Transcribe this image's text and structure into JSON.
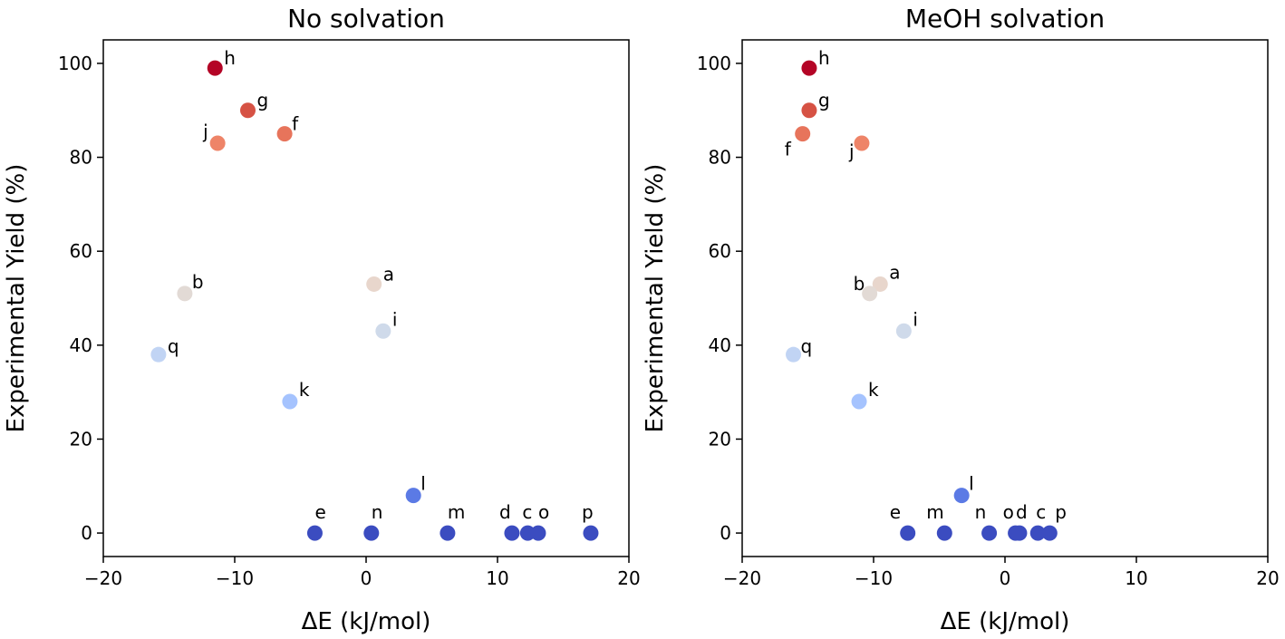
{
  "chart_data": [
    {
      "type": "scatter",
      "title": "No solvation",
      "xlabel": "ΔE (kJ/mol)",
      "ylabel": "Experimental Yield (%)",
      "xlim": [
        -20,
        20
      ],
      "ylim": [
        -5,
        105
      ],
      "xticks": [
        -20,
        -10,
        0,
        10,
        20
      ],
      "yticks": [
        0,
        20,
        40,
        60,
        80,
        100
      ],
      "xtick_labels": [
        "−20",
        "−10",
        "0",
        "10",
        "20"
      ],
      "ytick_labels": [
        "0",
        "20",
        "40",
        "60",
        "80",
        "100"
      ],
      "grid": false,
      "colormap": "coolwarm",
      "points": [
        {
          "label": "h",
          "x": -11.5,
          "y": 99,
          "color": "#b40426"
        },
        {
          "label": "g",
          "x": -9.0,
          "y": 90,
          "color": "#d65244"
        },
        {
          "label": "f",
          "x": -6.2,
          "y": 85,
          "color": "#e7745b"
        },
        {
          "label": "j",
          "x": -11.3,
          "y": 83,
          "color": "#ee8468"
        },
        {
          "label": "a",
          "x": 0.6,
          "y": 53,
          "color": "#e8d6cc"
        },
        {
          "label": "b",
          "x": -13.8,
          "y": 51,
          "color": "#e2dad5"
        },
        {
          "label": "i",
          "x": 1.3,
          "y": 43,
          "color": "#cfdaea"
        },
        {
          "label": "q",
          "x": -15.8,
          "y": 38,
          "color": "#c1d4f4"
        },
        {
          "label": "k",
          "x": -5.8,
          "y": 28,
          "color": "#a5c3fe"
        },
        {
          "label": "l",
          "x": 3.6,
          "y": 8,
          "color": "#5b7ae5"
        },
        {
          "label": "e",
          "x": -3.9,
          "y": 0,
          "color": "#3b4cc0"
        },
        {
          "label": "n",
          "x": 0.4,
          "y": 0,
          "color": "#3b4cc0"
        },
        {
          "label": "m",
          "x": 6.2,
          "y": 0,
          "color": "#3b4cc0"
        },
        {
          "label": "d",
          "x": 11.1,
          "y": 0,
          "color": "#3b4cc0"
        },
        {
          "label": "c",
          "x": 12.3,
          "y": 0,
          "color": "#3b4cc0"
        },
        {
          "label": "o",
          "x": 13.1,
          "y": 0,
          "color": "#3b4cc0"
        },
        {
          "label": "p",
          "x": 17.1,
          "y": 0,
          "color": "#3b4cc0"
        }
      ]
    },
    {
      "type": "scatter",
      "title": "MeOH solvation",
      "xlabel": "ΔE (kJ/mol)",
      "ylabel": "Experimental Yield (%)",
      "xlim": [
        -20,
        20
      ],
      "ylim": [
        -5,
        105
      ],
      "xticks": [
        -20,
        -10,
        0,
        10,
        20
      ],
      "yticks": [
        0,
        20,
        40,
        60,
        80,
        100
      ],
      "xtick_labels": [
        "−20",
        "−10",
        "0",
        "10",
        "20"
      ],
      "ytick_labels": [
        "0",
        "20",
        "40",
        "60",
        "80",
        "100"
      ],
      "grid": false,
      "colormap": "coolwarm",
      "points": [
        {
          "label": "h",
          "x": -14.9,
          "y": 99,
          "color": "#b40426"
        },
        {
          "label": "g",
          "x": -14.9,
          "y": 90,
          "color": "#d65244"
        },
        {
          "label": "f",
          "x": -15.4,
          "y": 85,
          "color": "#e7745b"
        },
        {
          "label": "j",
          "x": -10.9,
          "y": 83,
          "color": "#ee8468"
        },
        {
          "label": "a",
          "x": -9.5,
          "y": 53,
          "color": "#e8d6cc"
        },
        {
          "label": "b",
          "x": -10.3,
          "y": 51,
          "color": "#e2dad5"
        },
        {
          "label": "i",
          "x": -7.7,
          "y": 43,
          "color": "#cfdaea"
        },
        {
          "label": "q",
          "x": -16.1,
          "y": 38,
          "color": "#c1d4f4"
        },
        {
          "label": "k",
          "x": -11.1,
          "y": 28,
          "color": "#a5c3fe"
        },
        {
          "label": "l",
          "x": -3.3,
          "y": 8,
          "color": "#5b7ae5"
        },
        {
          "label": "e",
          "x": -7.4,
          "y": 0,
          "color": "#3b4cc0"
        },
        {
          "label": "m",
          "x": -4.6,
          "y": 0,
          "color": "#3b4cc0"
        },
        {
          "label": "n",
          "x": -1.2,
          "y": 0,
          "color": "#3b4cc0"
        },
        {
          "label": "o",
          "x": 0.8,
          "y": 0,
          "color": "#3b4cc0"
        },
        {
          "label": "d",
          "x": 1.1,
          "y": 0,
          "color": "#3b4cc0"
        },
        {
          "label": "c",
          "x": 2.5,
          "y": 0,
          "color": "#3b4cc0"
        },
        {
          "label": "p",
          "x": 3.4,
          "y": 0,
          "color": "#3b4cc0"
        }
      ]
    }
  ]
}
